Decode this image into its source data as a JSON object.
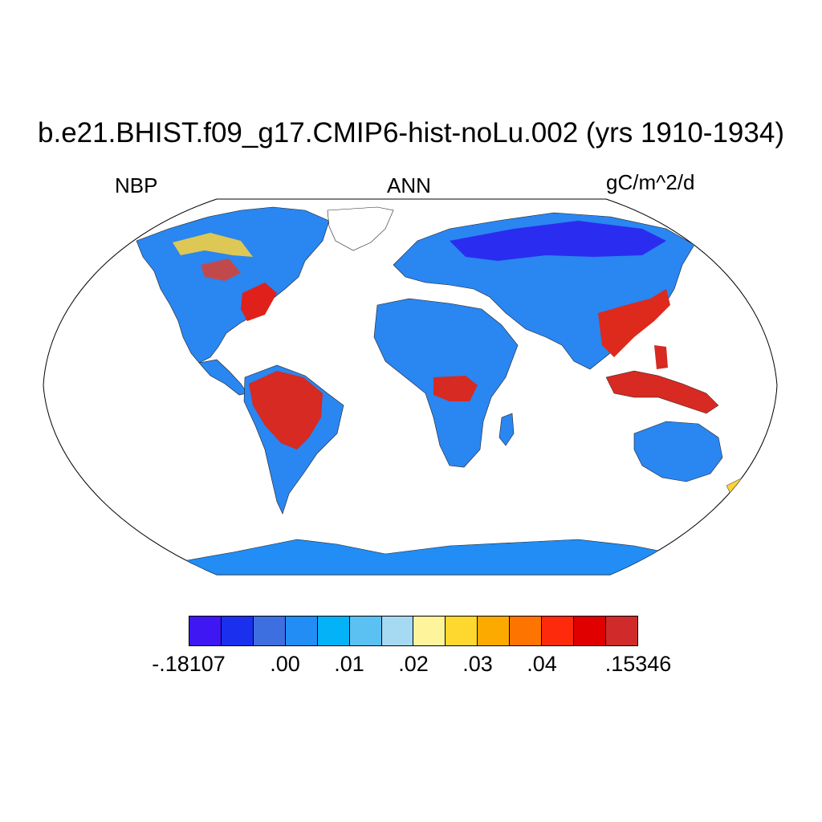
{
  "title": "b.e21.BHIST.f09_g17.CMIP6-hist-noLu.002 (yrs 1910-1934)",
  "left_label": "NBP",
  "center_label": "ANN",
  "right_label": "gC/m^2/d",
  "colorbar": {
    "colors": [
      "#3e17f2",
      "#1a30ee",
      "#3d6fe0",
      "#218df5",
      "#04b2f8",
      "#5bc1f2",
      "#a6d9f2",
      "#fdf49c",
      "#fed82e",
      "#fdaa00",
      "#fd7500",
      "#fd2b0b",
      "#e00000",
      "#d12a2a"
    ],
    "tick_labels": [
      "-.18107",
      ".00",
      ".01",
      ".02",
      ".03",
      ".04",
      ".15346"
    ]
  },
  "map": {
    "projection": "Robinson",
    "ocean_color": "#ffffff",
    "dominant_land_color": "#218df5"
  }
}
